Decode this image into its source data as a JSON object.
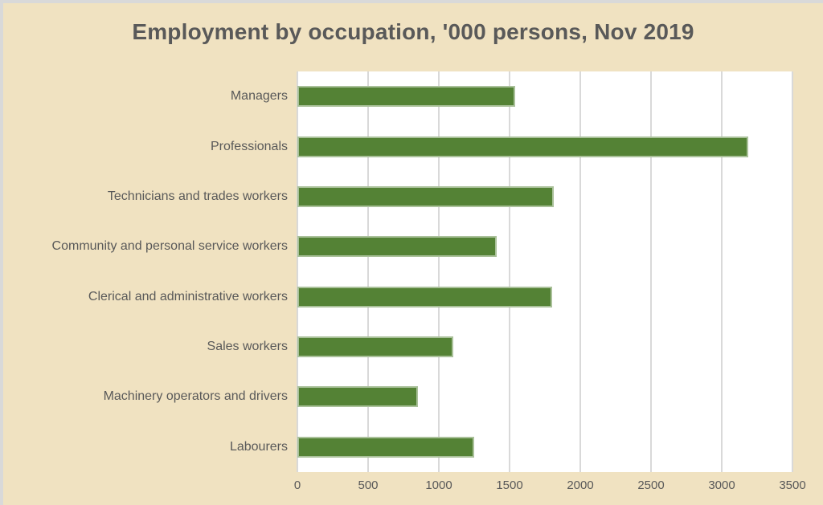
{
  "chart_data": {
    "type": "bar",
    "orientation": "horizontal",
    "title": "Employment by occupation, '000 persons, Nov 2019",
    "xlabel": "",
    "ylabel": "",
    "categories": [
      "Managers",
      "Professionals",
      "Technicians and trades workers",
      "Community and personal service workers",
      "Clerical and administrative workers",
      "Sales workers",
      "Machinery operators and drivers",
      "Labourers"
    ],
    "values": [
      1540,
      3190,
      1810,
      1410,
      1800,
      1100,
      850,
      1250
    ],
    "xlim": [
      0,
      3500
    ],
    "xticks": [
      0,
      500,
      1000,
      1500,
      2000,
      2500,
      3000,
      3500
    ],
    "grid": true,
    "legend": false
  },
  "colors": {
    "background": "#f0e2c1",
    "frame_border": "#d9d9d9",
    "bar": "#548235",
    "gridline": "#d9d9d9",
    "text": "#595959",
    "plot_background": "#ffffff"
  }
}
